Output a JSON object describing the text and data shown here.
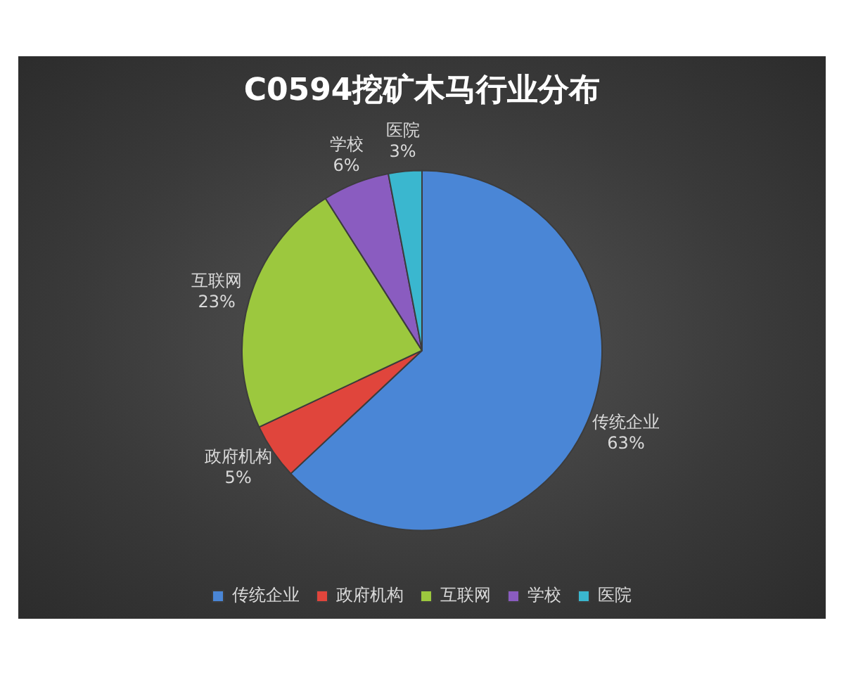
{
  "chart_data": {
    "type": "pie",
    "title": "C0594挖矿木马行业分布",
    "categories": [
      "传统企业",
      "政府机构",
      "互联网",
      "学校",
      "医院"
    ],
    "values": [
      63,
      5,
      23,
      6,
      3
    ],
    "value_labels": [
      "63%",
      "5%",
      "23%",
      "6%",
      "3%"
    ],
    "colors": [
      "#4a86d6",
      "#e0453c",
      "#9cc83e",
      "#8a5cc0",
      "#3ab7cf"
    ],
    "legend": "bottom"
  }
}
